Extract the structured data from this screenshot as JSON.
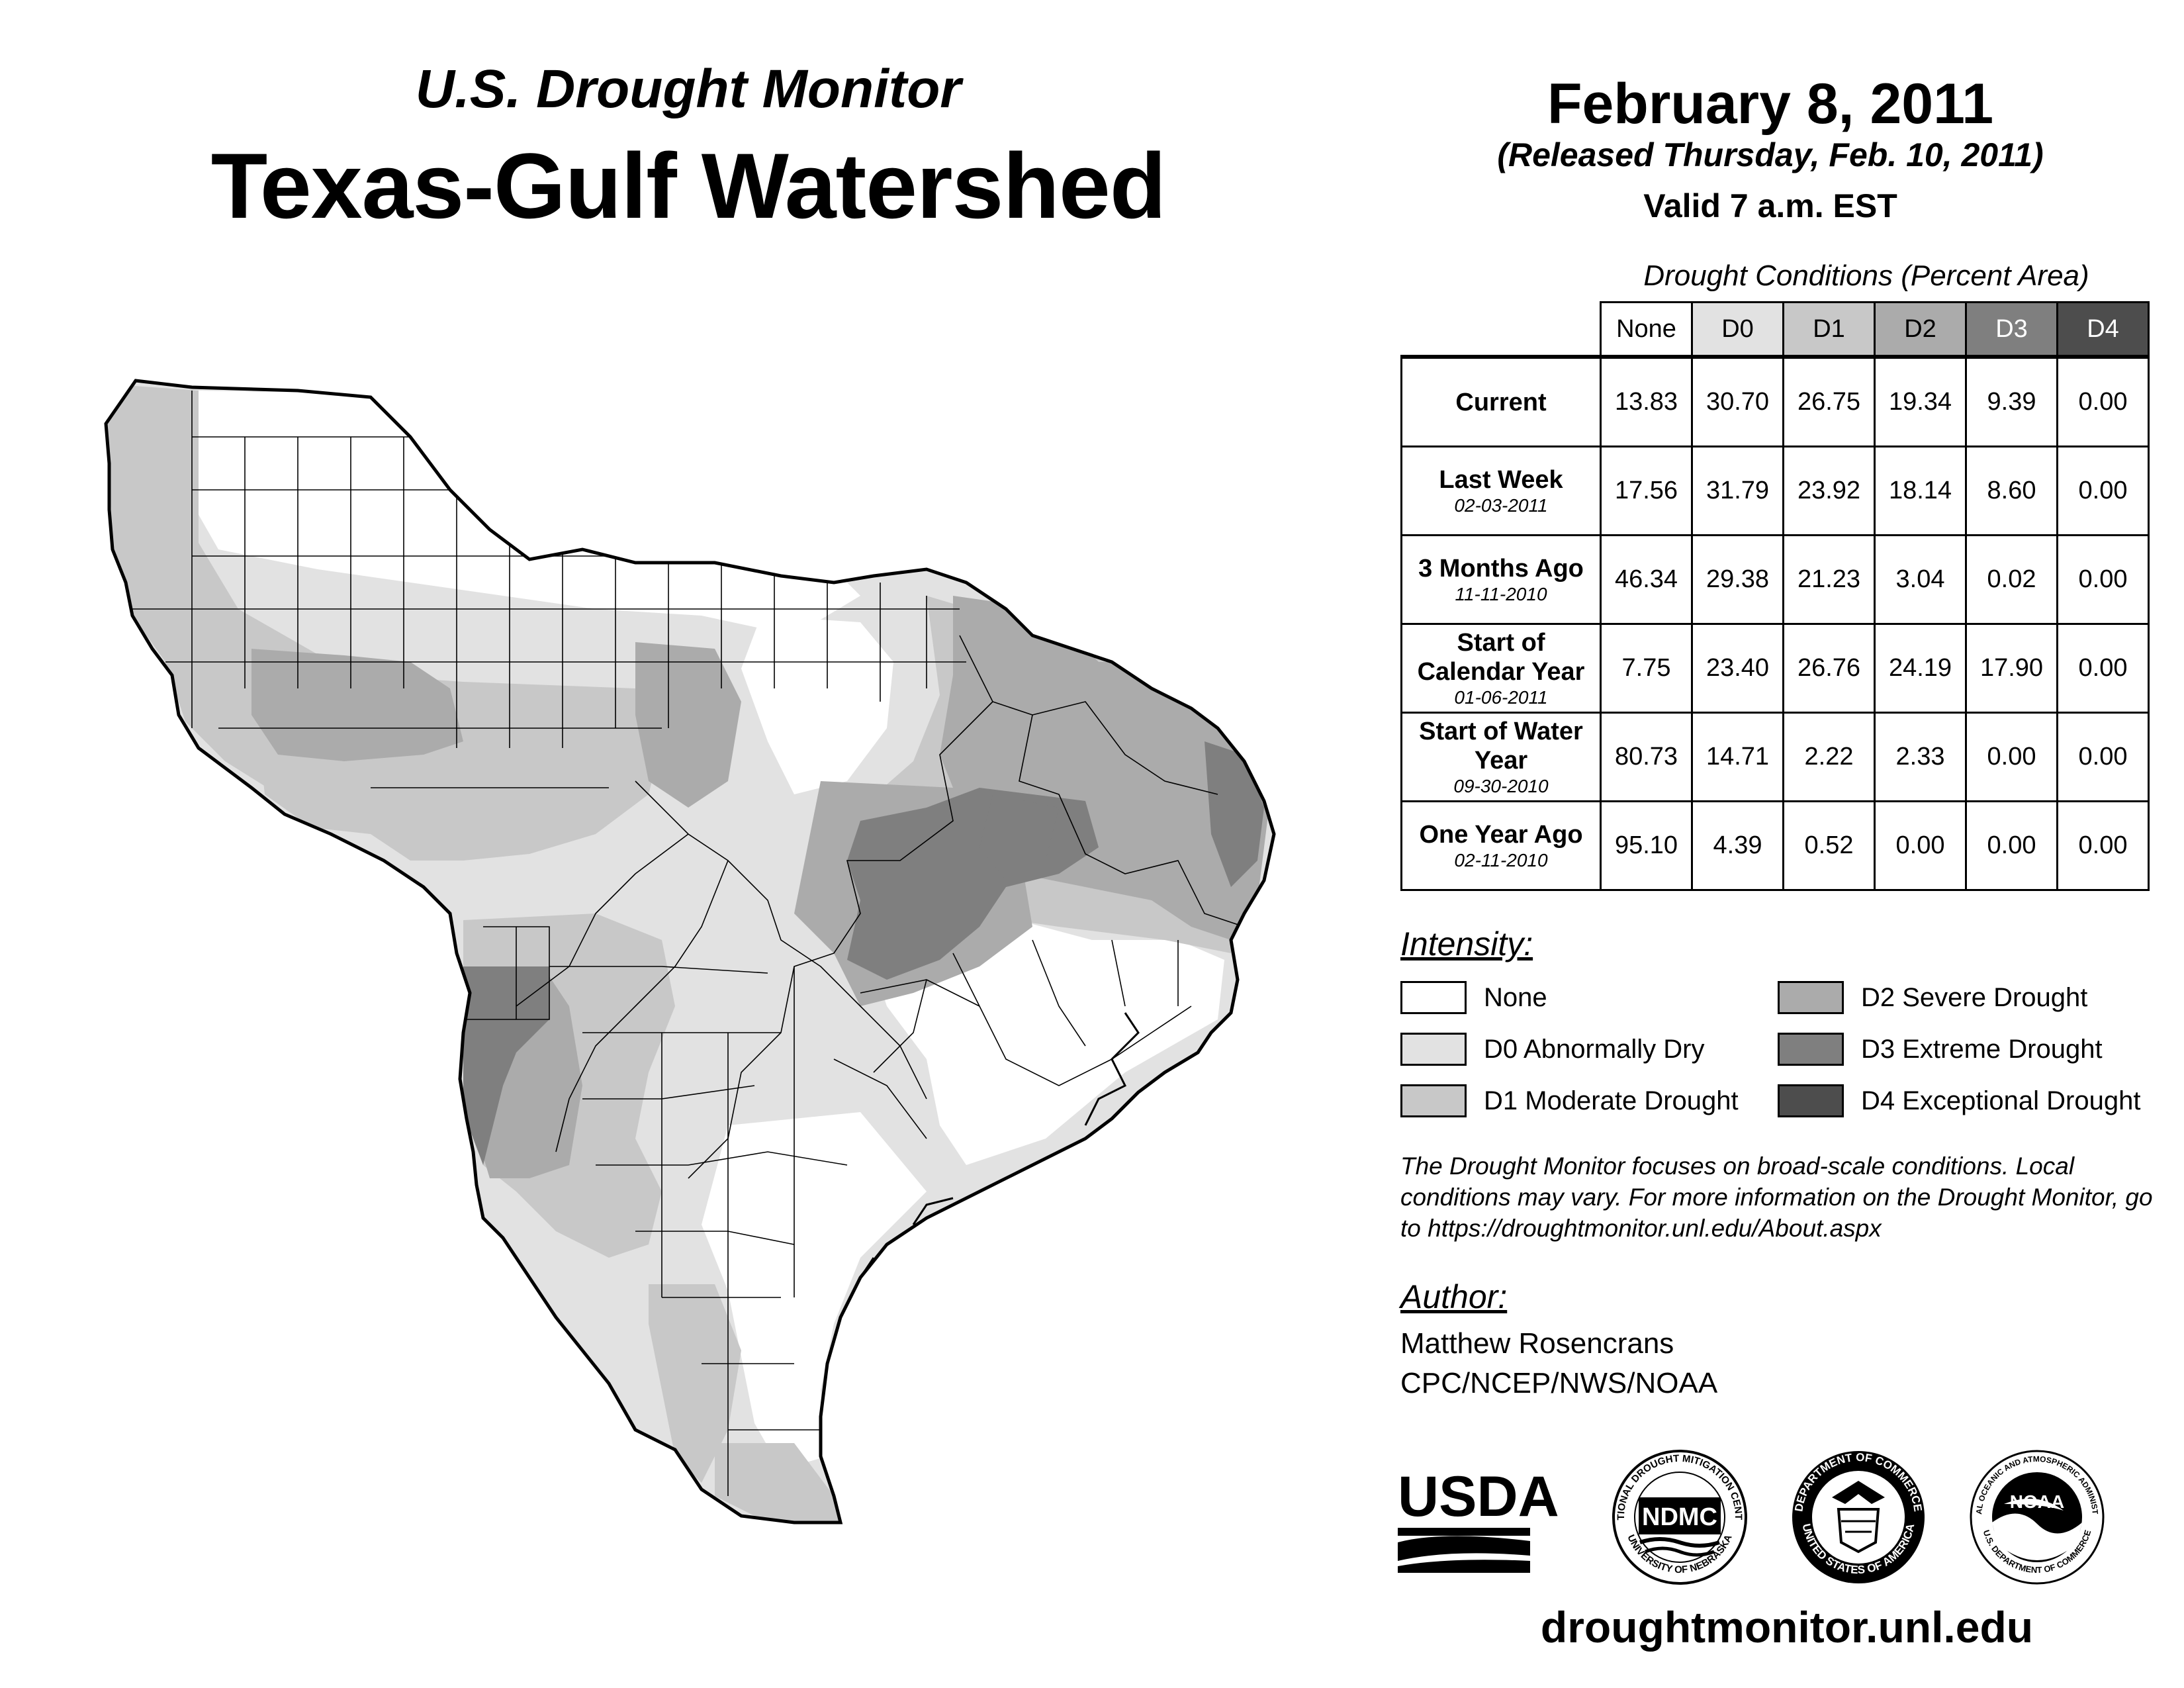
{
  "header": {
    "title_small": "U.S. Drought Monitor",
    "title_big": "Texas-Gulf Watershed",
    "date": "February 8, 2011",
    "released": "(Released Thursday, Feb. 10, 2011)",
    "valid": "Valid 7 a.m. EST"
  },
  "conditions": {
    "caption": "Drought Conditions (Percent Area)",
    "columns": [
      "None",
      "D0",
      "D1",
      "D2",
      "D3",
      "D4"
    ],
    "rows": [
      {
        "label": "Current",
        "date": "",
        "values": [
          "13.83",
          "30.70",
          "26.75",
          "19.34",
          "9.39",
          "0.00"
        ]
      },
      {
        "label": "Last Week",
        "date": "02-03-2011",
        "values": [
          "17.56",
          "31.79",
          "23.92",
          "18.14",
          "8.60",
          "0.00"
        ]
      },
      {
        "label": "3 Months Ago",
        "date": "11-11-2010",
        "values": [
          "46.34",
          "29.38",
          "21.23",
          "3.04",
          "0.02",
          "0.00"
        ]
      },
      {
        "label": "Start of Calendar Year",
        "date": "01-06-2011",
        "values": [
          "7.75",
          "23.40",
          "26.76",
          "24.19",
          "17.90",
          "0.00"
        ]
      },
      {
        "label": "Start of Water Year",
        "date": "09-30-2010",
        "values": [
          "80.73",
          "14.71",
          "2.22",
          "2.33",
          "0.00",
          "0.00"
        ]
      },
      {
        "label": "One Year Ago",
        "date": "02-11-2010",
        "values": [
          "95.10",
          "4.39",
          "0.52",
          "0.00",
          "0.00",
          "0.00"
        ]
      }
    ]
  },
  "legend": {
    "title": "Intensity:",
    "items": [
      {
        "label": "None",
        "color": "#ffffff"
      },
      {
        "label": "D0 Abnormally Dry",
        "color": "#e2e2e2"
      },
      {
        "label": "D1 Moderate Drought",
        "color": "#c8c8c8"
      },
      {
        "label": "D2 Severe Drought",
        "color": "#ababab"
      },
      {
        "label": "D3 Extreme Drought",
        "color": "#7f7f7f"
      },
      {
        "label": "D4 Exceptional Drought",
        "color": "#4d4d4d"
      }
    ]
  },
  "note": "The Drought Monitor focuses on broad-scale conditions. Local conditions may vary. For more information on the Drought Monitor, go to https://droughtmonitor.unl.edu/About.aspx",
  "author": {
    "title": "Author:",
    "name": "Matthew Rosencrans",
    "org": "CPC/NCEP/NWS/NOAA"
  },
  "logos": {
    "usda": "USDA",
    "ndmc": "NDMC",
    "ndmc_ring": "NATIONAL DROUGHT MITIGATION CENTER",
    "ndmc_ring_bottom": "UNIVERSITY OF NEBRASKA",
    "doc_ring": "DEPARTMENT OF COMMERCE",
    "doc_ring_bottom": "UNITED STATES OF AMERICA",
    "noaa": "NOAA",
    "noaa_ring": "NATIONAL OCEANIC AND ATMOSPHERIC ADMINISTRATION",
    "noaa_ring_bottom": "U.S. DEPARTMENT OF COMMERCE"
  },
  "website": "droughtmonitor.unl.edu"
}
